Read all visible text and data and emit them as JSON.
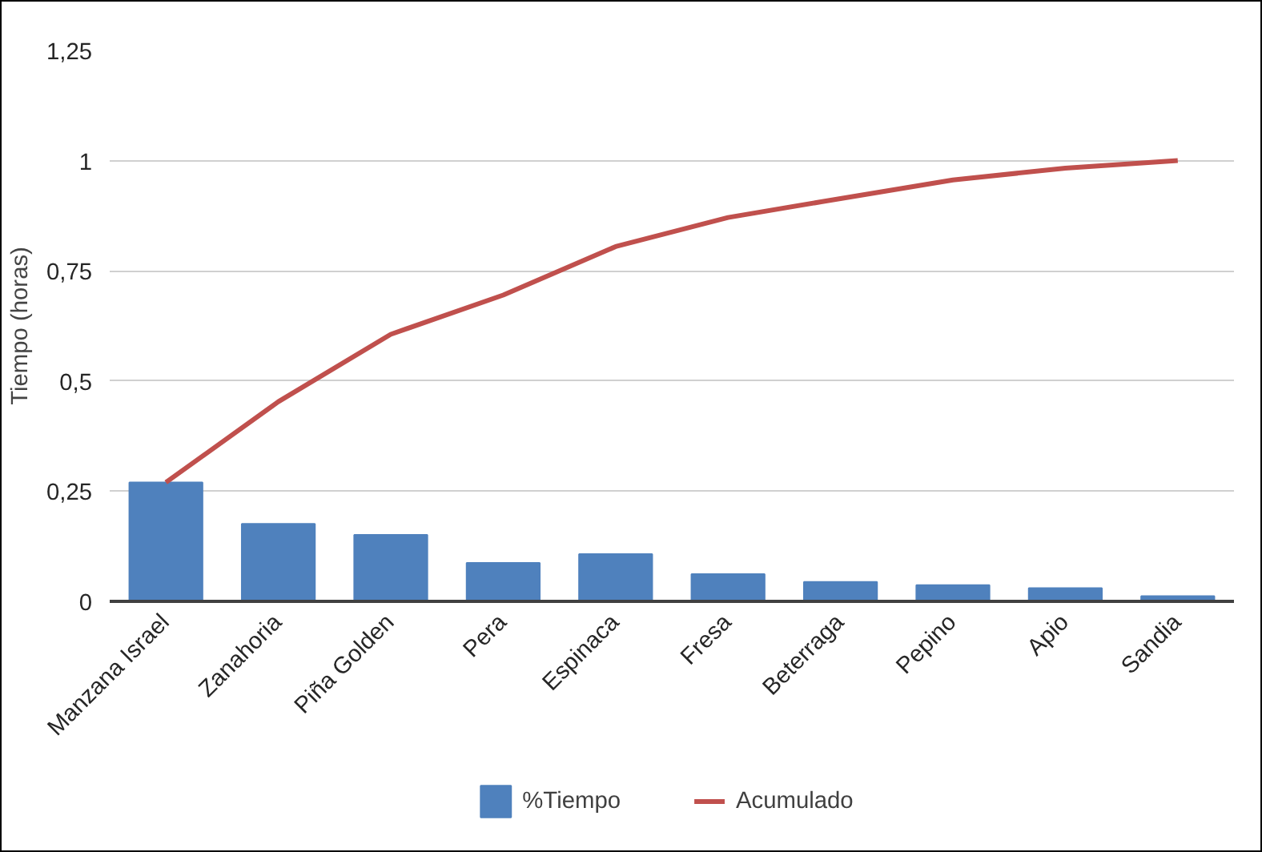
{
  "chart_data": {
    "type": "bar",
    "ylabel": "Tiempo (horas)",
    "categories": [
      "Manzana Israel",
      "Zanahoria",
      "Piña Golden",
      "Pera",
      "Espinaca",
      "Fresa",
      "Beterraga",
      "Pepino",
      "Apio",
      "Sandia"
    ],
    "series": [
      {
        "name": "%Tiempo",
        "color": "#4f81bd",
        "values": [
          0.27,
          0.176,
          0.151,
          0.087,
          0.107,
          0.062,
          0.044,
          0.037,
          0.03,
          0.012
        ]
      },
      {
        "name": "Acumulado",
        "type": "line",
        "color": "#c0504d",
        "values": [
          0.27,
          0.453,
          0.606,
          0.695,
          0.805,
          0.871,
          0.914,
          0.956,
          0.983,
          1.0
        ]
      }
    ],
    "ylim": [
      0,
      1.25
    ],
    "yticks": [
      0,
      {
        "value": 0.25,
        "label": "0,25"
      },
      {
        "value": 0.5,
        "label": "0,5"
      },
      {
        "value": 0.75,
        "label": "0,75"
      },
      1,
      {
        "value": 1.25,
        "label": "1,25"
      }
    ],
    "grid": "y",
    "legend": "bottom"
  }
}
